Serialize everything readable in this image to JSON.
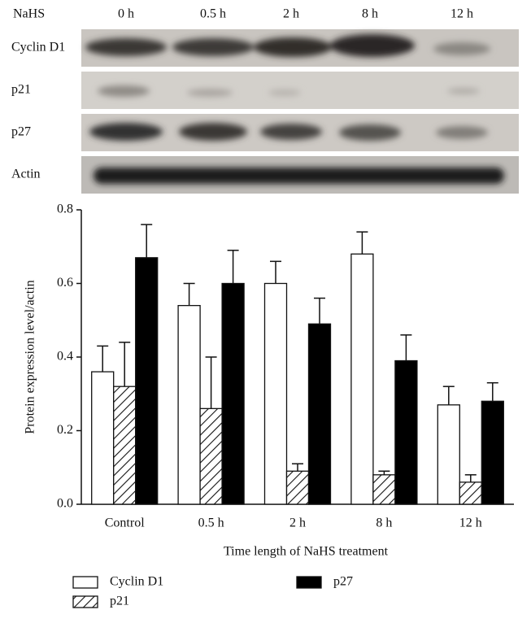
{
  "blot": {
    "header": "NaHS",
    "lanes": [
      "0 h",
      "0.5 h",
      "2 h",
      "8 h",
      "12 h"
    ],
    "rows": [
      "Cyclin D1",
      "p21",
      "p27",
      "Actin"
    ]
  },
  "chart_data": {
    "type": "bar",
    "ylabel": "Protein expression level/actin",
    "xlabel": "Time length of NaHS treatment",
    "categories": [
      "Control",
      "0.5 h",
      "2 h",
      "8 h",
      "12 h"
    ],
    "series": [
      {
        "name": "Cyclin D1",
        "color": "#ffffff",
        "values": [
          0.36,
          0.54,
          0.6,
          0.68,
          0.27
        ],
        "errors": [
          0.07,
          0.06,
          0.06,
          0.06,
          0.05
        ]
      },
      {
        "name": "p21",
        "color": "hatch",
        "values": [
          0.32,
          0.26,
          0.09,
          0.08,
          0.06
        ],
        "errors": [
          0.12,
          0.14,
          0.02,
          0.01,
          0.02
        ]
      },
      {
        "name": "p27",
        "color": "#000000",
        "values": [
          0.67,
          0.6,
          0.49,
          0.39,
          0.28
        ],
        "errors": [
          0.09,
          0.09,
          0.07,
          0.07,
          0.05
        ]
      }
    ],
    "ylim": [
      0,
      0.8
    ],
    "yticks": [
      {
        "value": 0,
        "label": "0.0"
      },
      0.2,
      0.4,
      0.6,
      0.8
    ]
  }
}
